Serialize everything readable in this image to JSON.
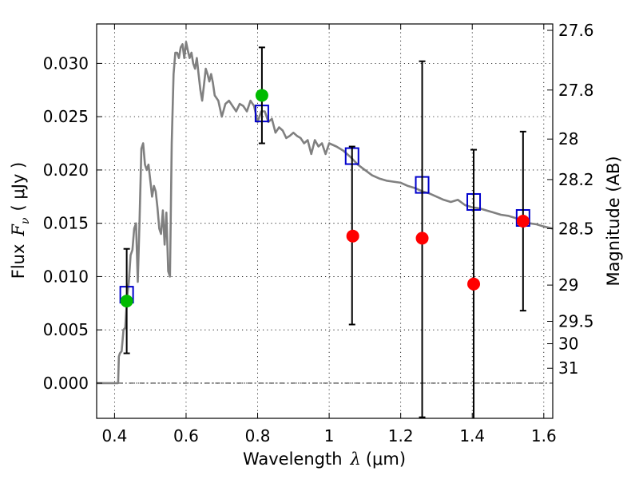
{
  "chart_data": {
    "type": "line",
    "xlabel_text": "Wavelength",
    "xlabel_math_symbol": "λ",
    "xlabel_unit": "(μm)",
    "ylabel_text": "Flux",
    "ylabel_math_symbol": "F",
    "ylabel_math_subscript": "ν",
    "ylabel_unit": "( μJy )",
    "y2label": "Magnitude (AB)",
    "xlim": [
      0.35,
      1.625
    ],
    "ylim": [
      -0.0033,
      0.0337
    ],
    "grid": true,
    "x_ticks": [
      0.4,
      0.6,
      0.8,
      1.0,
      1.2,
      1.4,
      1.6
    ],
    "x_tick_labels": [
      "0.4",
      "0.6",
      "0.8",
      "1",
      "1.2",
      "1.4",
      "1.6"
    ],
    "y_ticks": [
      0.0,
      0.005,
      0.01,
      0.015,
      0.02,
      0.025,
      0.03
    ],
    "y_tick_labels": [
      "0.000",
      "0.005",
      "0.010",
      "0.015",
      "0.020",
      "0.025",
      "0.030"
    ],
    "y2_ticks": [
      {
        "label": "27.6",
        "flux": 0.0331
      },
      {
        "label": "27.8",
        "flux": 0.0275
      },
      {
        "label": "28",
        "flux": 0.0229
      },
      {
        "label": "28.2",
        "flux": 0.0191
      },
      {
        "label": "28.5",
        "flux": 0.0145
      },
      {
        "label": "29",
        "flux": 0.0092
      },
      {
        "label": "29.5",
        "flux": 0.0058
      },
      {
        "label": "30",
        "flux": 0.0037
      },
      {
        "label": "31",
        "flux": 0.0014
      }
    ],
    "series": [
      {
        "kind": "line",
        "color": "#808080",
        "x": [
          0.35,
          0.41,
          0.412,
          0.415,
          0.42,
          0.425,
          0.43,
          0.435,
          0.44,
          0.445,
          0.45,
          0.455,
          0.46,
          0.465,
          0.47,
          0.475,
          0.48,
          0.485,
          0.49,
          0.495,
          0.5,
          0.505,
          0.51,
          0.515,
          0.52,
          0.525,
          0.53,
          0.535,
          0.54,
          0.545,
          0.55,
          0.555,
          0.56,
          0.565,
          0.57,
          0.575,
          0.58,
          0.585,
          0.59,
          0.595,
          0.6,
          0.605,
          0.61,
          0.615,
          0.62,
          0.625,
          0.63,
          0.635,
          0.64,
          0.645,
          0.65,
          0.655,
          0.66,
          0.665,
          0.67,
          0.675,
          0.68,
          0.69,
          0.7,
          0.71,
          0.72,
          0.73,
          0.74,
          0.75,
          0.76,
          0.77,
          0.78,
          0.79,
          0.8,
          0.81,
          0.82,
          0.83,
          0.84,
          0.85,
          0.86,
          0.87,
          0.88,
          0.89,
          0.9,
          0.91,
          0.92,
          0.93,
          0.94,
          0.95,
          0.96,
          0.97,
          0.98,
          0.99,
          1.0,
          1.02,
          1.04,
          1.06,
          1.08,
          1.1,
          1.12,
          1.14,
          1.16,
          1.18,
          1.2,
          1.22,
          1.24,
          1.26,
          1.28,
          1.3,
          1.32,
          1.34,
          1.36,
          1.38,
          1.4,
          1.42,
          1.44,
          1.46,
          1.48,
          1.5,
          1.52,
          1.54,
          1.56,
          1.58,
          1.6,
          1.625
        ],
        "y": [
          0.0,
          0.0,
          0.0025,
          0.0028,
          0.003,
          0.005,
          0.0052,
          0.008,
          0.0095,
          0.012,
          0.0125,
          0.0145,
          0.015,
          0.0095,
          0.0152,
          0.022,
          0.0225,
          0.0205,
          0.02,
          0.0205,
          0.019,
          0.0175,
          0.0185,
          0.018,
          0.0165,
          0.0145,
          0.014,
          0.0162,
          0.013,
          0.016,
          0.0105,
          0.01,
          0.0225,
          0.029,
          0.031,
          0.031,
          0.0305,
          0.0315,
          0.0318,
          0.0305,
          0.032,
          0.0312,
          0.0305,
          0.031,
          0.03,
          0.0295,
          0.0305,
          0.029,
          0.0275,
          0.0265,
          0.028,
          0.0295,
          0.029,
          0.0283,
          0.029,
          0.0282,
          0.027,
          0.0265,
          0.025,
          0.0262,
          0.0265,
          0.026,
          0.0255,
          0.0262,
          0.026,
          0.0255,
          0.0265,
          0.026,
          0.0245,
          0.0255,
          0.0255,
          0.0245,
          0.0248,
          0.0235,
          0.024,
          0.0237,
          0.023,
          0.0232,
          0.0235,
          0.0232,
          0.023,
          0.0225,
          0.0228,
          0.0215,
          0.0228,
          0.0222,
          0.0225,
          0.0215,
          0.0225,
          0.0222,
          0.0218,
          0.0212,
          0.0205,
          0.02,
          0.0195,
          0.0192,
          0.019,
          0.0189,
          0.0188,
          0.0185,
          0.0183,
          0.018,
          0.0178,
          0.0175,
          0.0172,
          0.017,
          0.0172,
          0.0167,
          0.0165,
          0.0164,
          0.0162,
          0.016,
          0.0158,
          0.0157,
          0.0155,
          0.0152,
          0.015,
          0.0149,
          0.0147,
          0.0145
        ]
      },
      {
        "kind": "open-square",
        "color": "#0000cc",
        "x": [
          0.434,
          0.812,
          1.064,
          1.26,
          1.404,
          1.542
        ],
        "y": [
          0.0083,
          0.0253,
          0.0213,
          0.0186,
          0.017,
          0.0155
        ]
      },
      {
        "kind": "error-bars",
        "color": "#000000",
        "x": [
          0.434,
          0.812,
          1.064,
          1.26,
          1.404,
          1.542
        ],
        "y_low": [
          0.0028,
          0.0225,
          0.0055,
          -0.0032,
          -0.0035,
          0.0068
        ],
        "y_high": [
          0.0126,
          0.0315,
          0.0222,
          0.0302,
          0.0219,
          0.0236
        ]
      },
      {
        "kind": "filled-circle",
        "color": "#00bb00",
        "x": [
          0.434,
          0.812
        ],
        "y": [
          0.0077,
          0.027
        ]
      },
      {
        "kind": "filled-circle",
        "color": "#ff0000",
        "x": [
          1.066,
          1.26,
          1.404,
          1.542
        ],
        "y": [
          0.0138,
          0.0136,
          0.0093,
          0.0152
        ]
      }
    ]
  }
}
